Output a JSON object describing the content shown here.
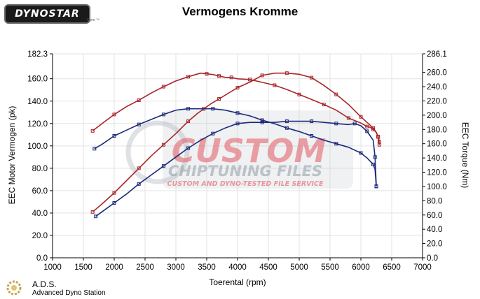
{
  "header": {
    "logo_text": "DYNOSTAR",
    "logo_subtext": "Dyno ™",
    "title": "Vermogens Kromme"
  },
  "footer": {
    "title": "A.D.S.",
    "subtitle": "Advanced Dyno Station"
  },
  "watermark": {
    "line1": "CUSTOM",
    "line2": "CHIPTUNING FILES",
    "line3": "CUSTOM AND DYNO-TESTED FILE SERVICE"
  },
  "colors": {
    "red": "#a8262a",
    "blue": "#1d2a7a",
    "grid": "#e3e3e3",
    "watermark_red": "#e35a64",
    "watermark_grey": "#b7bec6"
  },
  "chart_data": {
    "type": "line",
    "xlabel": "Toerental (rpm)",
    "ylabel_left": "EEC Motor Vermogen (pk)",
    "ylabel_right": "EEC Torque (Nm)",
    "xlim": [
      1000,
      7000
    ],
    "xticks": [
      "1000",
      "1500",
      "2000",
      "2500",
      "3000",
      "3500",
      "4000",
      "4500",
      "5000",
      "5500",
      "6000",
      "6500",
      "7000"
    ],
    "ylim_left": [
      0,
      182.3
    ],
    "yticks_left": [
      "182.3",
      "160.0",
      "140.0",
      "120.0",
      "100.0",
      "80.0",
      "60.0",
      "40.0",
      "20.0",
      "0.0"
    ],
    "ylim_right": [
      0,
      286.1
    ],
    "yticks_right": [
      "286.1",
      "260.0",
      "240.0",
      "220.0",
      "200.0",
      "180.0",
      "160.0",
      "140.0",
      "120.0",
      "100.0",
      "80.0",
      "60.0",
      "40.0",
      "20.0",
      "0.0"
    ],
    "grid": true,
    "series": [
      {
        "color": "red",
        "axis": "left",
        "quantity": "power",
        "x": [
          1650,
          1800,
          2000,
          2200,
          2400,
          2600,
          2800,
          3000,
          3200,
          3350,
          3450,
          3550,
          3700,
          3850,
          4000,
          4200,
          4400,
          4600,
          4800,
          5000,
          5200,
          5400,
          5600,
          5800,
          6000,
          6100,
          6200,
          6250,
          6280,
          6300
        ],
        "y": [
          41,
          48,
          58,
          69,
          80,
          91,
          101,
          111,
          122,
          129,
          133,
          137,
          142,
          147,
          152,
          157,
          163,
          165,
          165,
          164,
          161,
          154,
          146,
          137,
          126,
          121,
          116,
          112,
          108,
          101
        ]
      },
      {
        "color": "red",
        "axis": "right",
        "quantity": "torque",
        "x": [
          1650,
          1800,
          2000,
          2200,
          2400,
          2600,
          2800,
          3000,
          3200,
          3400,
          3500,
          3600,
          3700,
          3800,
          3900,
          4000,
          4200,
          4400,
          4600,
          4800,
          5000,
          5200,
          5400,
          5600,
          5800,
          6000,
          6100,
          6150,
          6200,
          6250,
          6280,
          6300
        ],
        "y": [
          178,
          188,
          201,
          212,
          221,
          231,
          240,
          248,
          254,
          259,
          258,
          257,
          255,
          253,
          253,
          251,
          250,
          246,
          242,
          236,
          229,
          222,
          215,
          207,
          196,
          189,
          184,
          183,
          180,
          176,
          170,
          163
        ]
      },
      {
        "color": "blue",
        "axis": "left",
        "quantity": "power",
        "x": [
          1700,
          1800,
          2000,
          2200,
          2400,
          2600,
          2800,
          3000,
          3200,
          3400,
          3600,
          3800,
          4000,
          4200,
          4400,
          4600,
          4800,
          5000,
          5200,
          5400,
          5600,
          5800,
          5900,
          6000,
          6100,
          6200,
          6230,
          6250
        ],
        "y": [
          37,
          41,
          49,
          57,
          66,
          74,
          82,
          90,
          98,
          105,
          111,
          116,
          120,
          121,
          121,
          121,
          122,
          122,
          122,
          121,
          120,
          119,
          120,
          118,
          113,
          105,
          90,
          64
        ]
      },
      {
        "color": "blue",
        "axis": "right",
        "quantity": "torque",
        "x": [
          1680,
          1800,
          2000,
          2200,
          2400,
          2600,
          2800,
          3000,
          3200,
          3400,
          3600,
          3800,
          4000,
          4200,
          4400,
          4600,
          4800,
          5000,
          5200,
          5400,
          5600,
          5800,
          6000,
          6100,
          6200,
          6230,
          6250
        ],
        "y": [
          153,
          159,
          171,
          179,
          187,
          194,
          201,
          207,
          209,
          209,
          209,
          207,
          203,
          199,
          193,
          188,
          182,
          177,
          171,
          165,
          160,
          155,
          147,
          140,
          131,
          124,
          100
        ]
      }
    ]
  }
}
